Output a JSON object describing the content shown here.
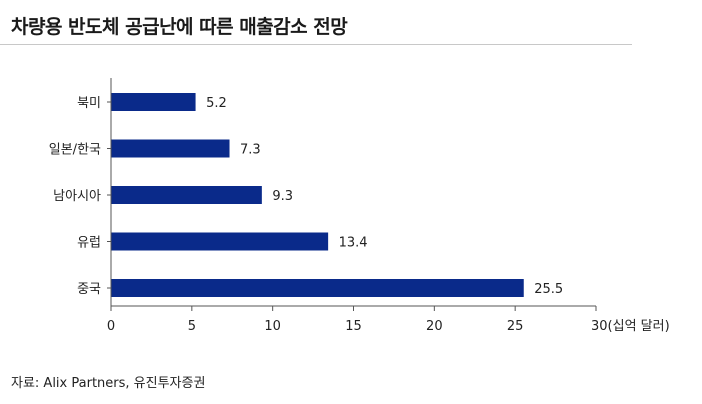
{
  "chart_data": {
    "type": "bar",
    "orientation": "horizontal",
    "title": "차량용 반도체 공급난에 따른 매출감소 전망",
    "categories": [
      "북미",
      "일본/한국",
      "남아시아",
      "유럽",
      "중국"
    ],
    "values": [
      5.2,
      7.3,
      9.3,
      13.4,
      25.5
    ],
    "data_labels": [
      "5.2",
      "7.3",
      "9.3",
      "13.4",
      "25.5"
    ],
    "xlim": [
      0,
      30
    ],
    "xticks": [
      "0",
      "5",
      "10",
      "15",
      "20",
      "25",
      "30"
    ],
    "unit_label": "(십억 달러)",
    "grid": false,
    "legend": "none",
    "bar_color": "#0a2a8a"
  },
  "source": "자료: Alix Partners, 유진투자증권"
}
